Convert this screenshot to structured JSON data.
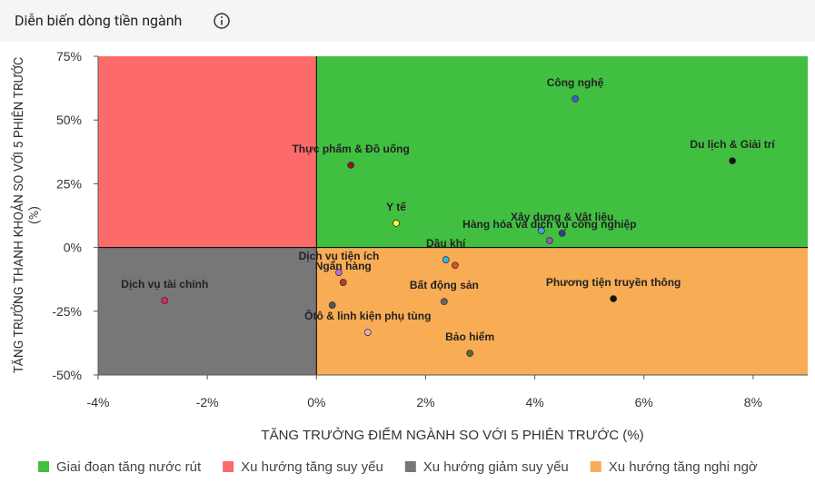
{
  "header": {
    "title": "Diễn biến dòng tiền ngành"
  },
  "chart_data": {
    "type": "scatter",
    "x_label": "TĂNG TRƯỞNG ĐIỂM NGÀNH SO VỚI 5 PHIÊN TRƯỚC (%)",
    "y_label": "TĂNG TRƯỞNG THANH KHOẢN SO VỚI 5 PHIÊN TRƯỚC (%)",
    "xlim": [
      -4,
      9
    ],
    "ylim": [
      -50,
      75
    ],
    "xticks": [
      {
        "value": -4,
        "label": "-4%"
      },
      {
        "value": -2,
        "label": "-2%"
      },
      {
        "value": 0,
        "label": "0%"
      },
      {
        "value": 2,
        "label": "2%"
      },
      {
        "value": 4,
        "label": "4%"
      },
      {
        "value": 6,
        "label": "6%"
      },
      {
        "value": 8,
        "label": "8%"
      }
    ],
    "yticks": [
      {
        "value": -50,
        "label": "-50%"
      },
      {
        "value": -25,
        "label": "-25%"
      },
      {
        "value": 0,
        "label": "0%"
      },
      {
        "value": 25,
        "label": "25%"
      },
      {
        "value": 50,
        "label": "50%"
      },
      {
        "value": 75,
        "label": "75%"
      }
    ],
    "quadrants": [
      {
        "name": "Giai đoạn tăng nước rút",
        "color": "#41bf41"
      },
      {
        "name": "Xu hướng tăng suy yếu",
        "color": "#fc6a6a"
      },
      {
        "name": "Xu hướng giảm suy yếu",
        "color": "#777679"
      },
      {
        "name": "Xu hướng tăng nghi ngờ",
        "color": "#f8ad55"
      }
    ],
    "labels": [
      "Công nghệ",
      "Du lịch & Giải trí",
      "Thực phẩm & Đồ uống",
      "Y tế",
      "Dầu khí",
      "Xây dựng & Vật liệu",
      "Hàng hóa và dịch vụ công nghiệp",
      null,
      null,
      "Dịch vụ tiện ích",
      "Ngân hàng",
      "Ôtô & linh kiện phụ tùng",
      null,
      "Bất động sản",
      "Bảo hiểm",
      "Phương tiện truyền thông",
      "Dịch vụ tài chính"
    ],
    "x": [
      4.74,
      7.62,
      0.63,
      1.46,
      2.37,
      4.5,
      4.27,
      4.12,
      2.54,
      0.41,
      0.49,
      0.94,
      0.29,
      2.34,
      2.81,
      5.44,
      -2.78
    ],
    "y": [
      58.3,
      34,
      32.3,
      9.5,
      -4.8,
      5.6,
      2.7,
      6.6,
      -7,
      -9.8,
      -13.7,
      -33.3,
      -22.6,
      -21.2,
      -41.5,
      -20.1,
      -20.8
    ],
    "colors": [
      "#3a5fcd",
      "#111111",
      "#8b1a1a",
      "#ffff33",
      "#29b6f6",
      "#3a3a8c",
      "#9b59b6",
      "#4aa3df",
      "#e0502a",
      "#c06cd8",
      "#c0392b",
      "#f4a6c0",
      "#555555",
      "#666666",
      "#556b2f",
      "#111111",
      "#e91e63"
    ]
  }
}
